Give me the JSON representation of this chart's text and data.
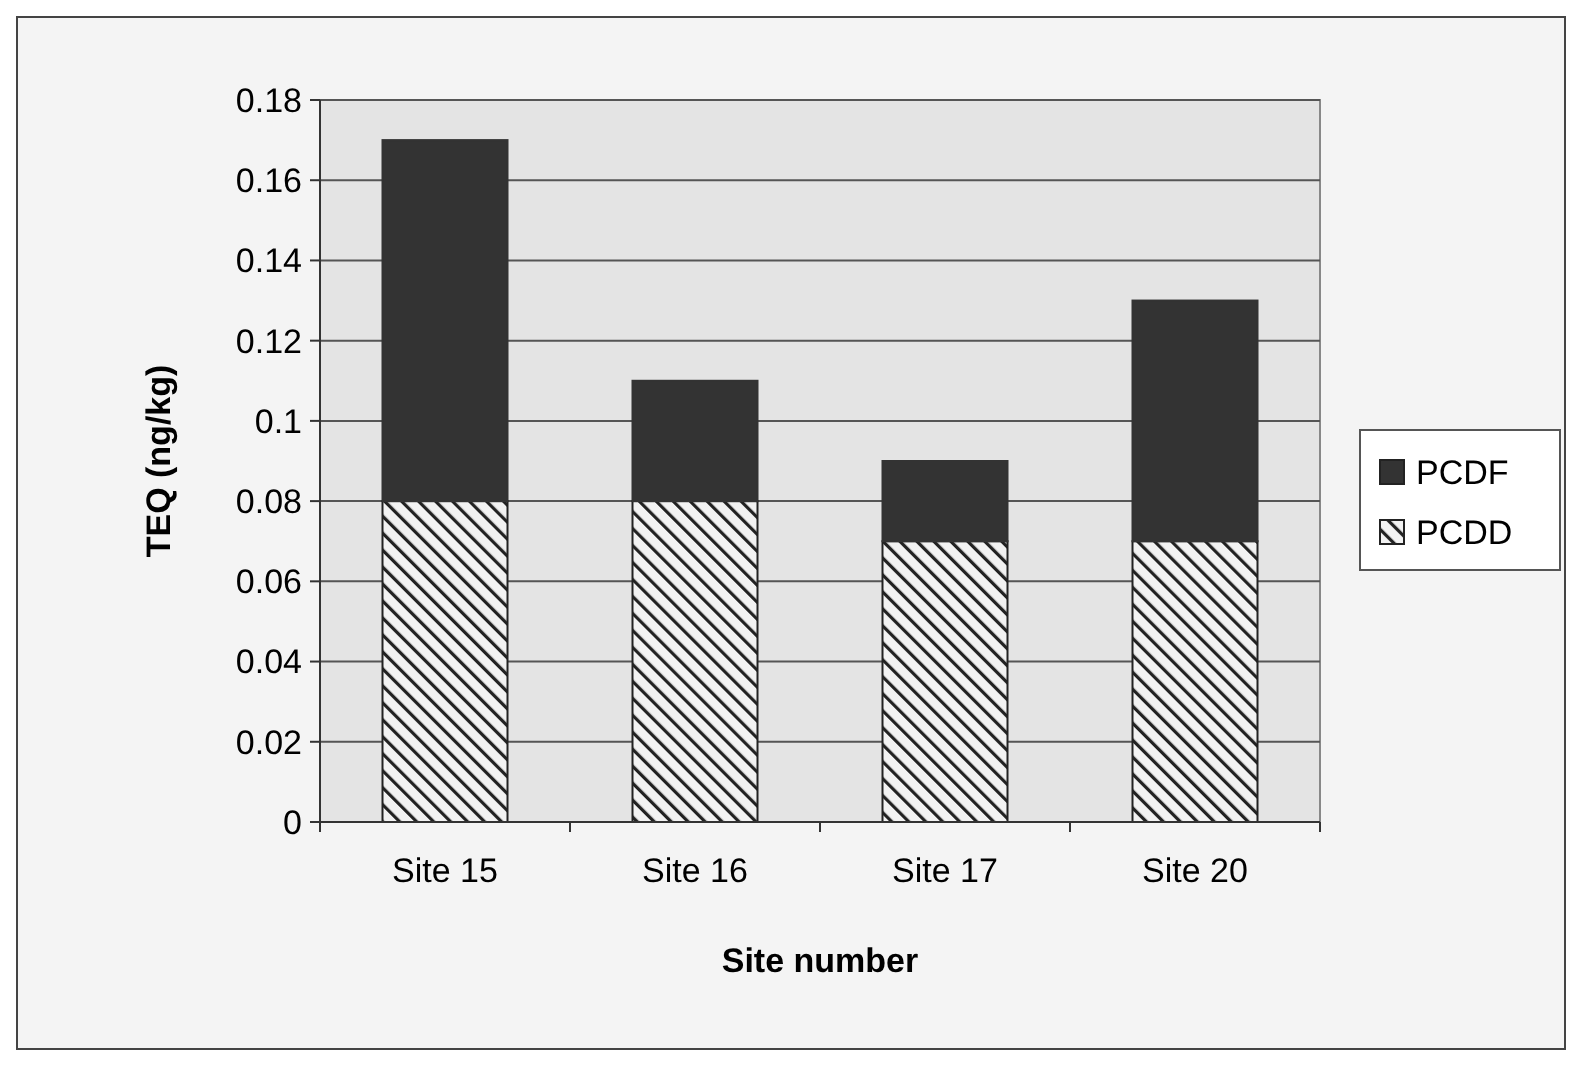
{
  "chart_data": {
    "type": "bar",
    "stacked": true,
    "xlabel": "Site number",
    "ylabel": "TEQ (ng/kg)",
    "categories": [
      "Site 15",
      "Site 16",
      "Site 17",
      "Site 20"
    ],
    "series": [
      {
        "name": "PCDD",
        "color": "#222222",
        "values": [
          0.08,
          0.08,
          0.07,
          0.07
        ]
      },
      {
        "name": "PCDF",
        "color": "#333333",
        "values": [
          0.09,
          0.03,
          0.02,
          0.06
        ]
      }
    ],
    "ylim": [
      0,
      0.18
    ],
    "yticks": [
      0,
      {
        "value": 0.02,
        "label": "0.02"
      },
      {
        "value": 0.04,
        "label": "0.04"
      },
      {
        "value": 0.06,
        "label": "0.06"
      },
      {
        "value": 0.08,
        "label": "0.08"
      },
      {
        "value": 0.1,
        "label": "0.1"
      },
      {
        "value": 0.12,
        "label": "0.12"
      },
      {
        "value": 0.14,
        "label": "0.14"
      },
      {
        "value": 0.16,
        "label": "0.16"
      },
      {
        "value": 0.18,
        "label": "0.18"
      }
    ],
    "grid": "y",
    "legend": "right"
  }
}
